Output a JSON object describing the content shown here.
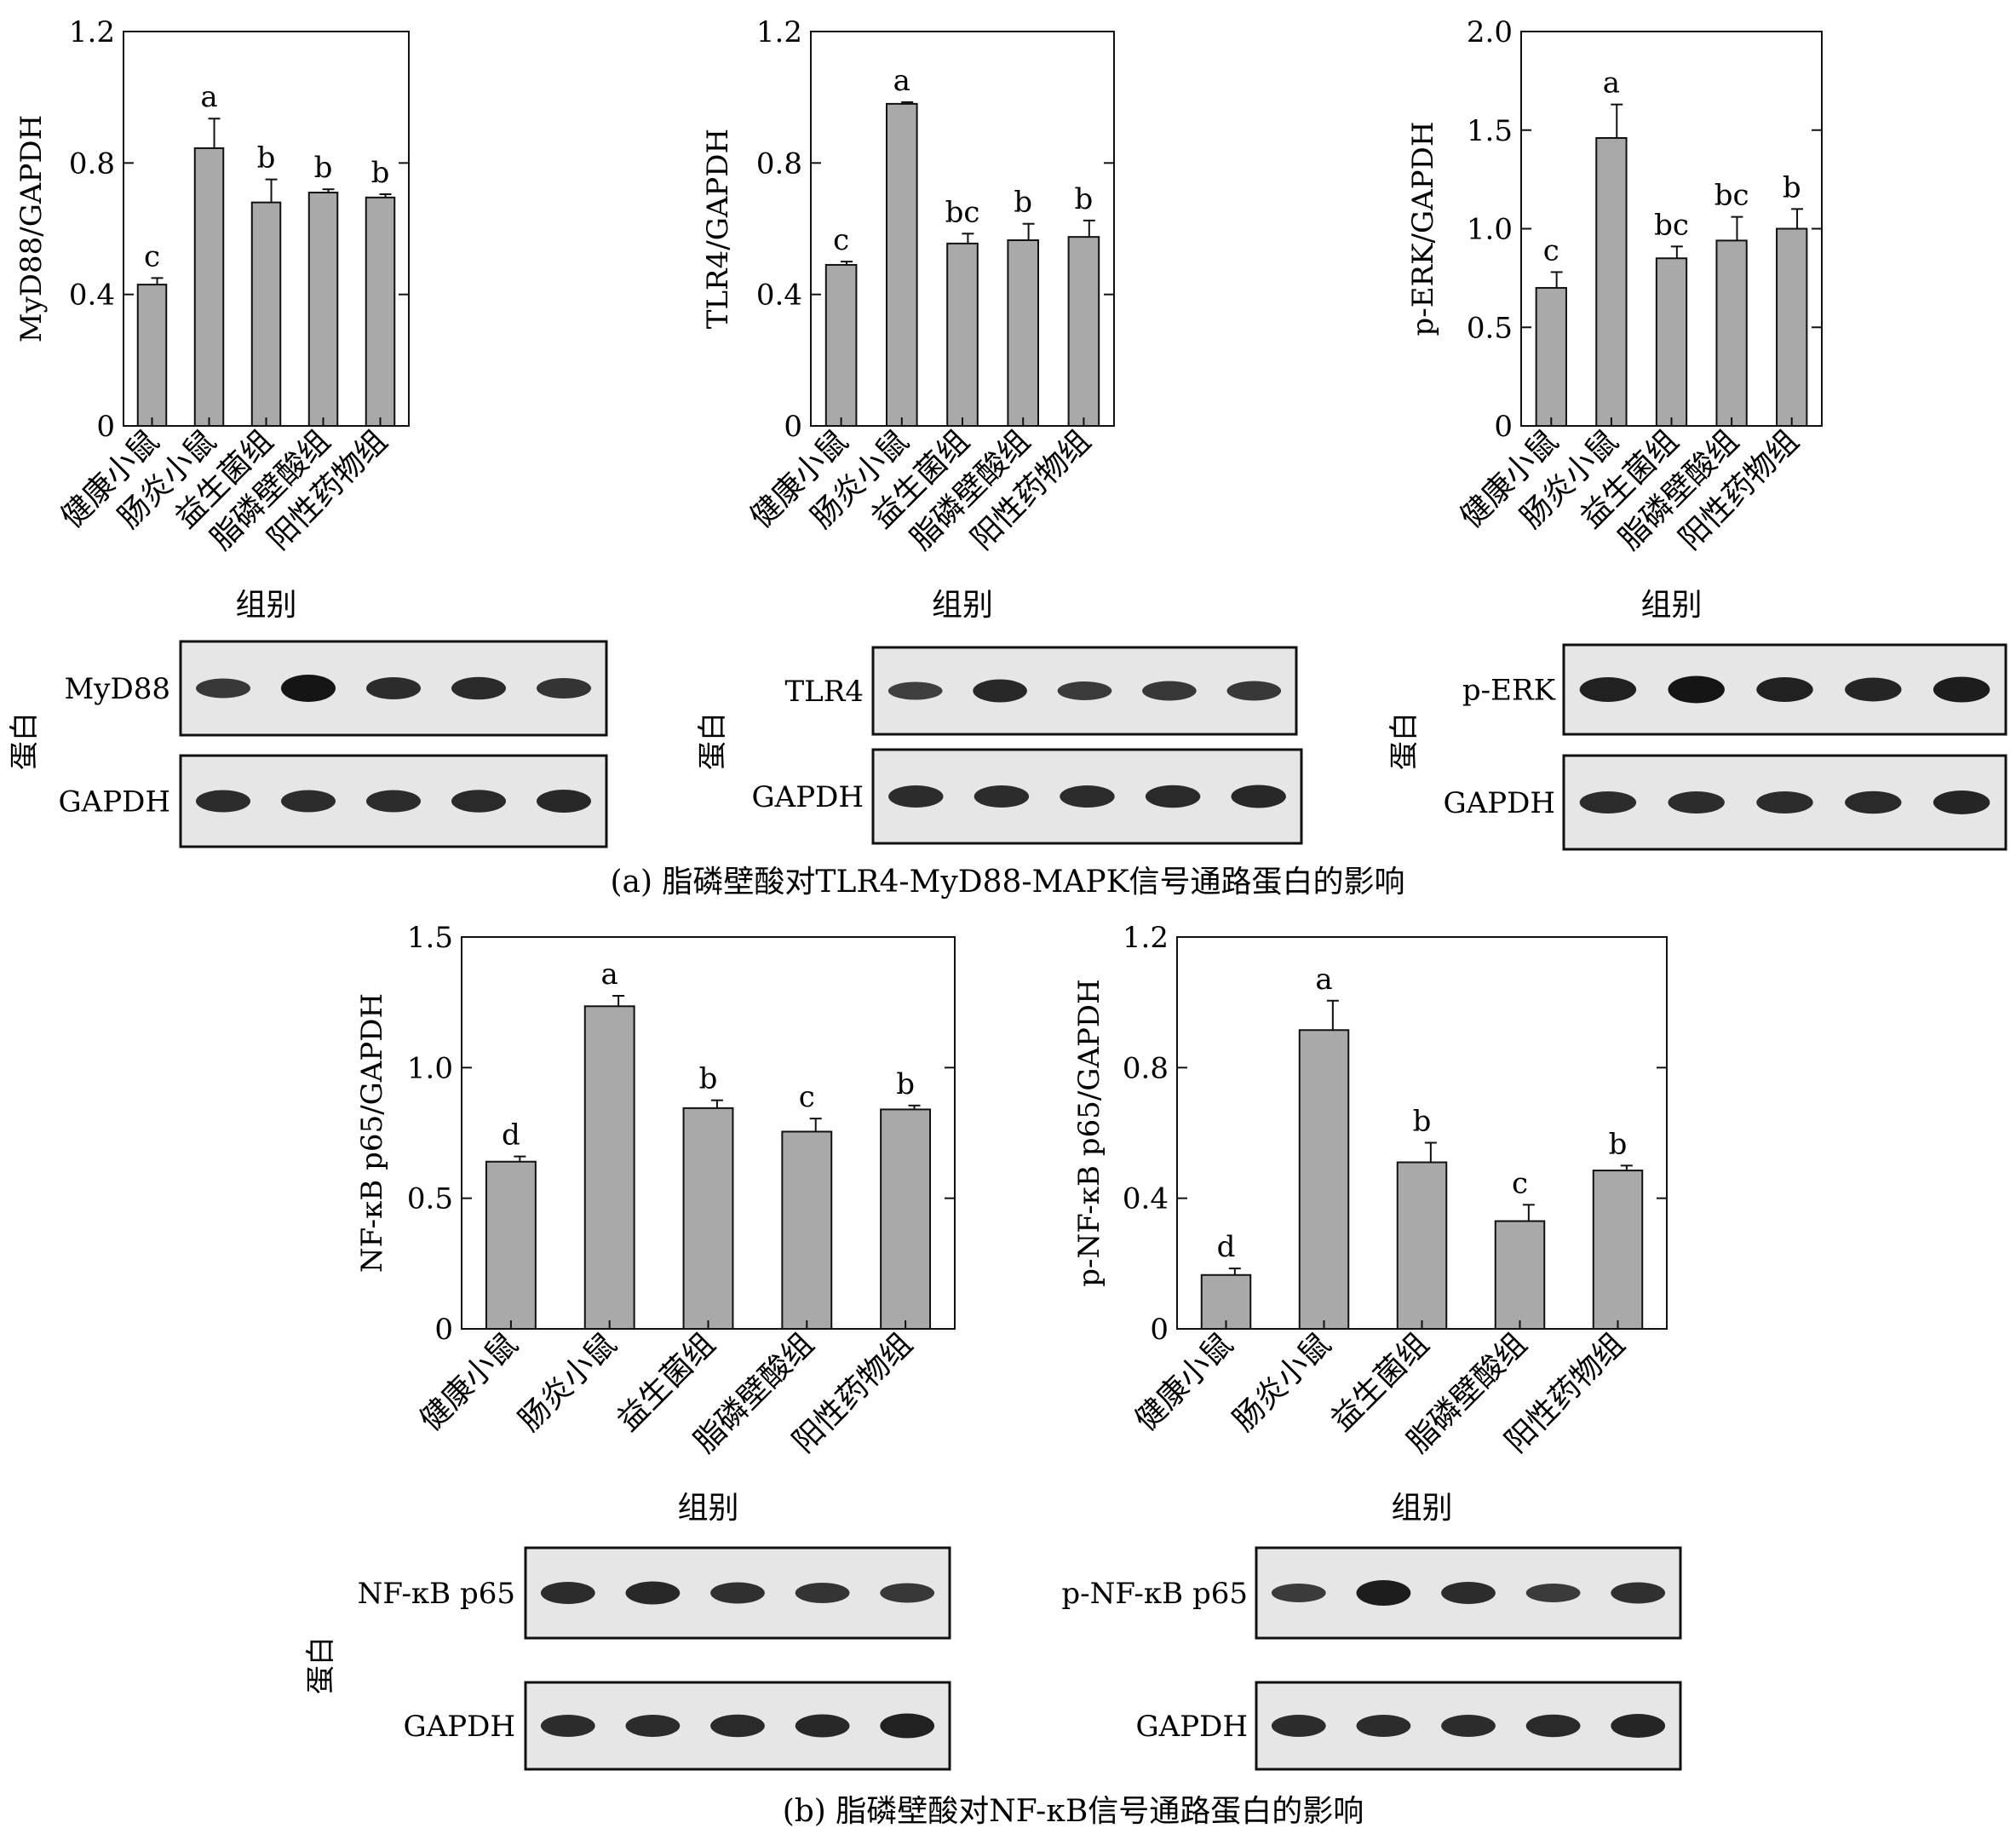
{
  "captions": {
    "a": "(a) 脂磷壁酸对TLR4-MyD88-MAPK信号通路蛋白的影响",
    "b": "(b) 脂磷壁酸对NF-κB信号通路蛋白的影响"
  },
  "protein_label": "蛋白",
  "colors": {
    "bar": "#a9a9a9",
    "axis": "#111111"
  },
  "chart_data": [
    {
      "type": "bar",
      "title": "",
      "xlabel": "组别",
      "ylabel": "MyD88/GAPDH",
      "categories": [
        "健康小鼠",
        "肠炎小鼠",
        "益生菌组",
        "脂磷壁酸组",
        "阳性药物组"
      ],
      "ylim": [
        0,
        1.2
      ],
      "yticks": [
        "0",
        "0.4",
        "0.8",
        "1.2"
      ],
      "ytick_values": [
        0,
        0.4,
        0.8,
        1.2
      ],
      "values": [
        0.43,
        0.845,
        0.68,
        0.71,
        0.695
      ],
      "errors": [
        0.02,
        0.09,
        0.07,
        0.01,
        0.01
      ],
      "letters": [
        "c",
        "a",
        "b",
        "b",
        "b"
      ]
    },
    {
      "type": "bar",
      "title": "",
      "xlabel": "组别",
      "ylabel": "TLR4/GAPDH",
      "categories": [
        "健康小鼠",
        "肠炎小鼠",
        "益生菌组",
        "脂磷壁酸组",
        "阳性药物组"
      ],
      "ylim": [
        0,
        1.2
      ],
      "yticks": [
        "0",
        "0.4",
        "0.8",
        "1.2"
      ],
      "ytick_values": [
        0,
        0.4,
        0.8,
        1.2
      ],
      "values": [
        0.49,
        0.98,
        0.555,
        0.565,
        0.575
      ],
      "errors": [
        0.01,
        0.005,
        0.03,
        0.05,
        0.05
      ],
      "letters": [
        "c",
        "a",
        "bc",
        "b",
        "b"
      ]
    },
    {
      "type": "bar",
      "title": "",
      "xlabel": "组别",
      "ylabel": "p-ERK/GAPDH",
      "categories": [
        "健康小鼠",
        "肠炎小鼠",
        "益生菌组",
        "脂磷壁酸组",
        "阳性药物组"
      ],
      "ylim": [
        0,
        2.0
      ],
      "yticks": [
        "0",
        "0.5",
        "1.0",
        "1.5",
        "2.0"
      ],
      "ytick_values": [
        0,
        0.5,
        1.0,
        1.5,
        2.0
      ],
      "values": [
        0.7,
        1.46,
        0.85,
        0.94,
        1.0
      ],
      "errors": [
        0.08,
        0.17,
        0.06,
        0.12,
        0.1
      ],
      "letters": [
        "c",
        "a",
        "bc",
        "bc",
        "b"
      ]
    },
    {
      "type": "bar",
      "title": "",
      "xlabel": "组别",
      "ylabel": "NF-κB p65/GAPDH",
      "categories": [
        "健康小鼠",
        "肠炎小鼠",
        "益生菌组",
        "脂磷壁酸组",
        "阳性药物组"
      ],
      "ylim": [
        0,
        1.5
      ],
      "yticks": [
        "0",
        "0.5",
        "1.0",
        "1.5"
      ],
      "ytick_values": [
        0,
        0.5,
        1.0,
        1.5
      ],
      "values": [
        0.64,
        1.235,
        0.845,
        0.755,
        0.84
      ],
      "errors": [
        0.02,
        0.04,
        0.03,
        0.05,
        0.015
      ],
      "letters": [
        "d",
        "a",
        "b",
        "c",
        "b"
      ]
    },
    {
      "type": "bar",
      "title": "",
      "xlabel": "组别",
      "ylabel": "p-NF-κB p65/GAPDH",
      "categories": [
        "健康小鼠",
        "肠炎小鼠",
        "益生菌组",
        "脂磷壁酸组",
        "阳性药物组"
      ],
      "ylim": [
        0,
        1.2
      ],
      "yticks": [
        "0",
        "0.4",
        "0.8",
        "1.2"
      ],
      "ytick_values": [
        0,
        0.4,
        0.8,
        1.2
      ],
      "values": [
        0.165,
        0.915,
        0.51,
        0.33,
        0.485
      ],
      "errors": [
        0.02,
        0.09,
        0.06,
        0.05,
        0.015
      ],
      "letters": [
        "d",
        "a",
        "b",
        "c",
        "b"
      ]
    }
  ],
  "blots": [
    {
      "label": "MyD88",
      "intensities": [
        0.55,
        1.0,
        0.7,
        0.72,
        0.6
      ],
      "gapdh_label": "GAPDH",
      "gapdh_intensities": [
        0.7,
        0.7,
        0.7,
        0.72,
        0.75
      ]
    },
    {
      "label": "TLR4",
      "intensities": [
        0.45,
        0.75,
        0.5,
        0.55,
        0.55
      ],
      "gapdh_label": "GAPDH",
      "gapdh_intensities": [
        0.7,
        0.7,
        0.7,
        0.72,
        0.75
      ]
    },
    {
      "label": "p-ERK",
      "intensities": [
        0.85,
        1.0,
        0.85,
        0.8,
        0.9
      ],
      "gapdh_label": "GAPDH",
      "gapdh_intensities": [
        0.7,
        0.7,
        0.7,
        0.72,
        0.8
      ]
    },
    {
      "label": "NF-κB p65",
      "intensities": [
        0.7,
        0.75,
        0.65,
        0.6,
        0.55
      ],
      "gapdh_label": "GAPDH",
      "gapdh_intensities": [
        0.7,
        0.7,
        0.72,
        0.75,
        0.85
      ]
    },
    {
      "label": "p-NF-κB p65",
      "intensities": [
        0.5,
        0.9,
        0.7,
        0.5,
        0.65
      ],
      "gapdh_label": "GAPDH",
      "gapdh_intensities": [
        0.7,
        0.7,
        0.7,
        0.72,
        0.8
      ]
    }
  ]
}
